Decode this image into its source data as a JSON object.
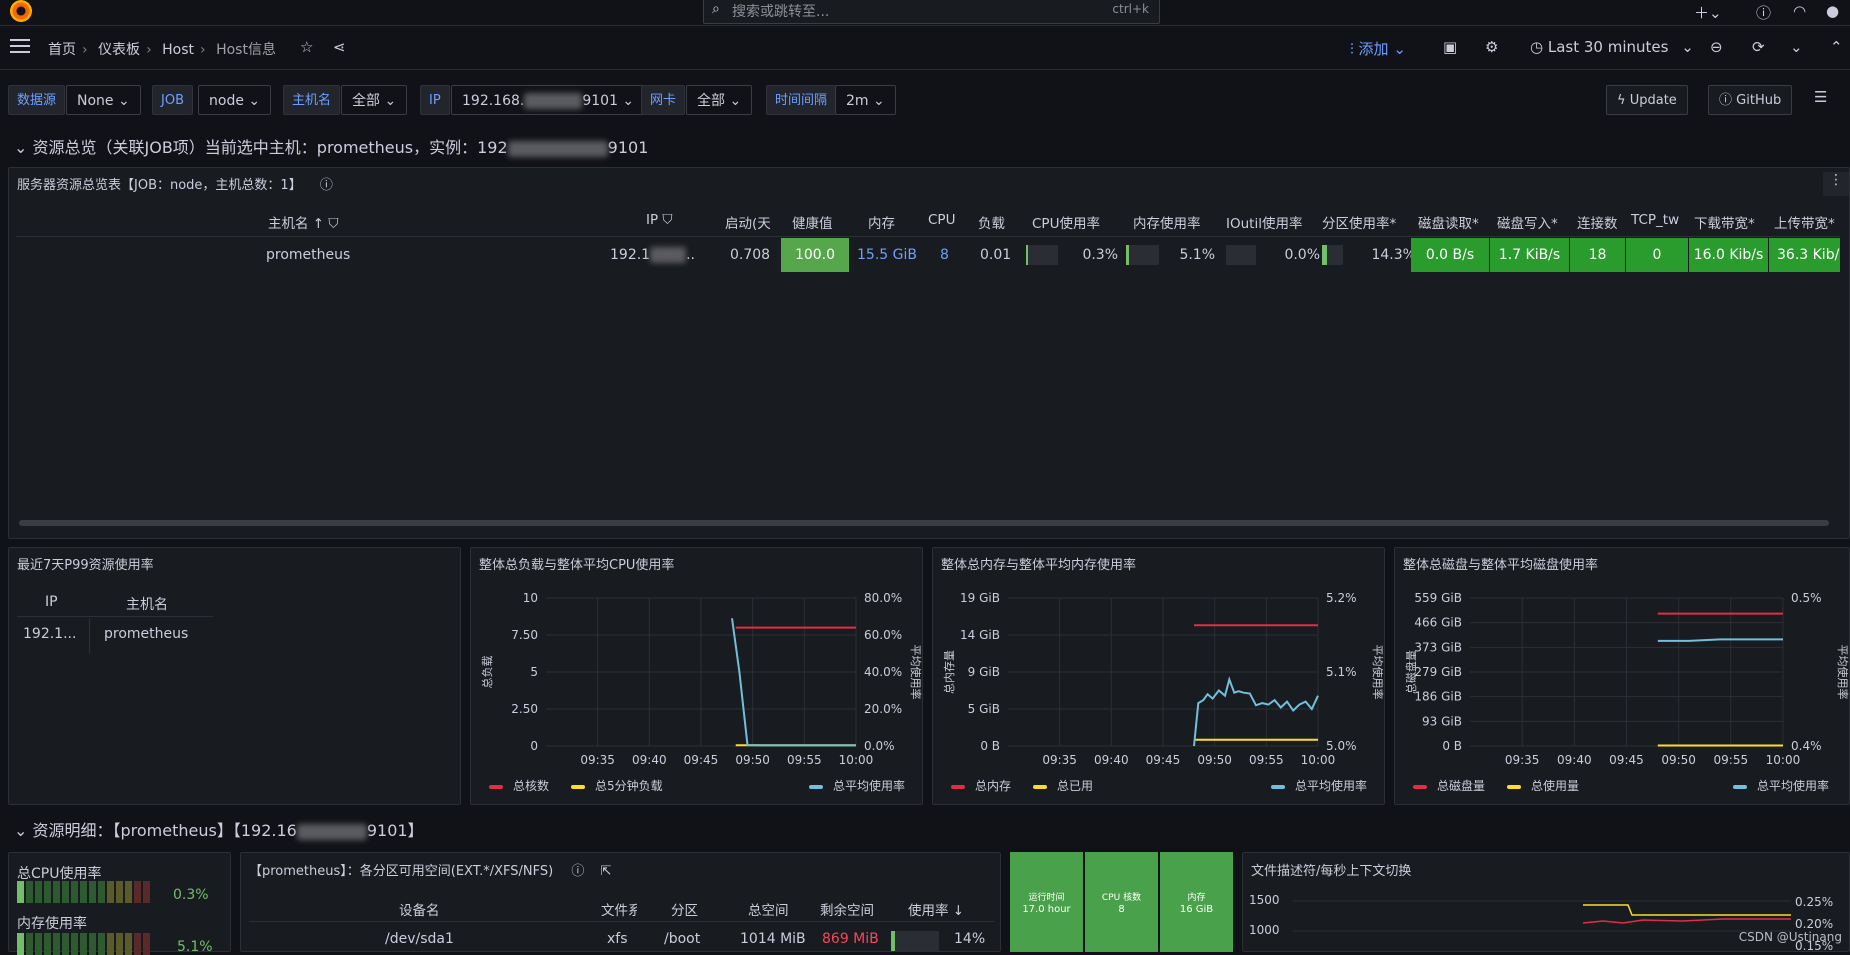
{
  "topbar": {
    "search_placeholder": "搜索或跳转至...",
    "search_shortcut": "ctrl+k"
  },
  "breadcrumb": {
    "home": "首页",
    "dashboards": "仪表板",
    "folder": "Host",
    "current": "Host信息"
  },
  "navbar": {
    "add_label": "添加",
    "time_range": "Last 30 minutes"
  },
  "filters": {
    "datasource_label": "数据源",
    "datasource_value": "None",
    "job_label": "JOB",
    "job_value": "node",
    "host_label": "主机名",
    "host_value": "全部",
    "ip_label": "IP",
    "ip_prefix": "192.168.",
    "ip_suffix": "9101",
    "nic_label": "网卡",
    "nic_value": "全部",
    "interval_label": "时间间隔",
    "interval_value": "2m",
    "update_label": "Update",
    "github_label": "GitHub"
  },
  "row1": {
    "title_prefix": "资源总览（关联JOB项）当前选中主机：prometheus，实例：192",
    "title_suffix": "9101"
  },
  "overview": {
    "title": "服务器资源总览表【JOB：node，主机总数：1】",
    "headers": [
      "主机名",
      "IP",
      "启动(天",
      "健康值",
      "内存",
      "CPU",
      "负载",
      "CPU使用率",
      "内存使用率",
      "IOutil使用率",
      "分区使用率*",
      "磁盘读取*",
      "磁盘写入*",
      "连接数",
      "TCP_tw",
      "下载带宽*",
      "上传带宽*"
    ],
    "row": {
      "host": "prometheus",
      "ip": "192.1",
      "uptime": "0.708",
      "health": "100.0",
      "mem": "15.5 GiB",
      "cpu": "8",
      "load": "0.01",
      "cpu_use": "0.3%",
      "mem_use": "5.1%",
      "io_use": "0.0%",
      "part_use": "14.3%",
      "disk_read": "0.0 B/s",
      "disk_write": "1.7 KiB/s",
      "conn": "18",
      "tcp_tw": "0",
      "down": "16.0 Kib/s",
      "up": "36.3 Kib/"
    }
  },
  "p99": {
    "title": "最近7天P99资源使用率",
    "headers": [
      "IP",
      "主机名"
    ],
    "row": {
      "ip": "192.1...",
      "host": "prometheus"
    }
  },
  "chart_data": [
    {
      "type": "line",
      "title": "整体总负载与整体平均CPU使用率",
      "ylabel": "总负载",
      "y2label": "平均使用率",
      "x_ticks": [
        "09:35",
        "09:40",
        "09:45",
        "09:50",
        "09:55",
        "10:00"
      ],
      "y_ticks": [
        "10",
        "7.50",
        "5",
        "2.50",
        "0"
      ],
      "y2_ticks": [
        "80.0%",
        "60.0%",
        "40.0%",
        "20.0%",
        "0.0%"
      ],
      "ylim": [
        0,
        10
      ],
      "y2lim": [
        0,
        80
      ],
      "series": [
        {
          "name": "总核数",
          "axis": "left",
          "color": "#e02f44",
          "x": [
            9.806,
            10.0
          ],
          "values": [
            8,
            8
          ]
        },
        {
          "name": "总5分钟负载",
          "axis": "left",
          "color": "#fade2a",
          "x": [
            9.806,
            10.0
          ],
          "values": [
            0.05,
            0.05
          ]
        },
        {
          "name": "总平均使用率",
          "axis": "right",
          "color": "#73bfdb",
          "x": [
            9.8,
            9.812,
            9.825,
            9.85,
            9.9,
            9.95,
            10.0
          ],
          "values": [
            69,
            40,
            0.5,
            0.3,
            0.3,
            0.3,
            0.3
          ]
        }
      ]
    },
    {
      "type": "line",
      "title": "整体总内存与整体平均内存使用率",
      "ylabel": "总内存量",
      "y2label": "平均使用率",
      "x_ticks": [
        "09:35",
        "09:40",
        "09:45",
        "09:50",
        "09:55",
        "10:00"
      ],
      "y_ticks": [
        "19 GiB",
        "14 GiB",
        "9 GiB",
        "5 GiB",
        "0 B"
      ],
      "y2_ticks": [
        "5.2%",
        "5.1%",
        "5.0%"
      ],
      "ylim": [
        0,
        19
      ],
      "y2lim": [
        5.0,
        5.2
      ],
      "series": [
        {
          "name": "总内存",
          "axis": "left",
          "color": "#e02f44",
          "x": [
            9.8,
            10.0
          ],
          "values": [
            15.5,
            15.5
          ]
        },
        {
          "name": "总已用",
          "axis": "left",
          "color": "#fade2a",
          "x": [
            9.8,
            10.0
          ],
          "values": [
            0.8,
            0.8
          ]
        },
        {
          "name": "总平均使用率",
          "axis": "right",
          "color": "#73bfdb",
          "x": [
            9.8,
            9.807,
            9.815,
            9.822,
            9.83,
            9.84,
            9.85,
            9.857,
            9.865,
            9.872,
            9.88,
            9.89,
            9.9,
            9.91,
            9.92,
            9.93,
            9.94,
            9.95,
            9.96,
            9.97,
            9.98,
            9.99,
            10.0
          ],
          "values": [
            5.0,
            5.058,
            5.062,
            5.07,
            5.064,
            5.075,
            5.068,
            5.09,
            5.072,
            5.074,
            5.072,
            5.071,
            5.055,
            5.058,
            5.056,
            5.062,
            5.052,
            5.06,
            5.048,
            5.056,
            5.06,
            5.05,
            5.068
          ]
        }
      ]
    },
    {
      "type": "line",
      "title": "整体总磁盘与整体平均磁盘使用率",
      "ylabel": "总磁盘量",
      "y2label": "平均使用率",
      "x_ticks": [
        "09:35",
        "09:40",
        "09:45",
        "09:50",
        "09:55",
        "10:00"
      ],
      "y_ticks": [
        "559 GiB",
        "466 GiB",
        "373 GiB",
        "279 GiB",
        "186 GiB",
        "93 GiB",
        "0 B"
      ],
      "y2_ticks": [
        "0.5%",
        "0.4%"
      ],
      "ylim": [
        0,
        559
      ],
      "y2lim": [
        0.4,
        0.5
      ],
      "series": [
        {
          "name": "总磁盘量",
          "axis": "left",
          "color": "#e02f44",
          "x": [
            9.8,
            10.0
          ],
          "values": [
            500,
            500
          ]
        },
        {
          "name": "总使用量",
          "axis": "left",
          "color": "#fade2a",
          "x": [
            9.8,
            10.0
          ],
          "values": [
            2,
            2
          ]
        },
        {
          "name": "总平均使用率",
          "axis": "right",
          "color": "#73bfdb",
          "x": [
            9.8,
            9.85,
            9.9,
            10.0
          ],
          "values": [
            0.471,
            0.471,
            0.472,
            0.472
          ]
        }
      ]
    }
  ],
  "row2": {
    "title_prefix": "资源明细：【prometheus】【192.16",
    "title_suffix": "9101】"
  },
  "cpu_panel": {
    "cpu_label": "总CPU使用率",
    "cpu_value": "0.3%",
    "mem_label": "内存使用率",
    "mem_value": "5.1%"
  },
  "disk_panel": {
    "title": "【prometheus】：各分区可用空间(EXT.*/XFS/NFS)",
    "headers": [
      "设备名",
      "文件系",
      "分区",
      "总空间",
      "剩余空间",
      "使用率"
    ],
    "row": {
      "device": "/dev/sda1",
      "fs": "xfs",
      "mount": "/boot",
      "total": "1014 MiB",
      "free": "869 MiB",
      "usage": "14%"
    }
  },
  "stats": [
    {
      "label": "运行时间",
      "value": "17.0 hour"
    },
    {
      "label": "CPU 核数",
      "value": "8"
    },
    {
      "label": "内存",
      "value": "16 GiB"
    }
  ],
  "fd_panel": {
    "title": "文件描述符/每秒上下文切换",
    "y_ticks": [
      "1500",
      "1000"
    ],
    "y2_ticks": [
      "0.25%",
      "0.20%",
      "0.15%"
    ]
  },
  "watermark": "CSDN @Ustinang"
}
